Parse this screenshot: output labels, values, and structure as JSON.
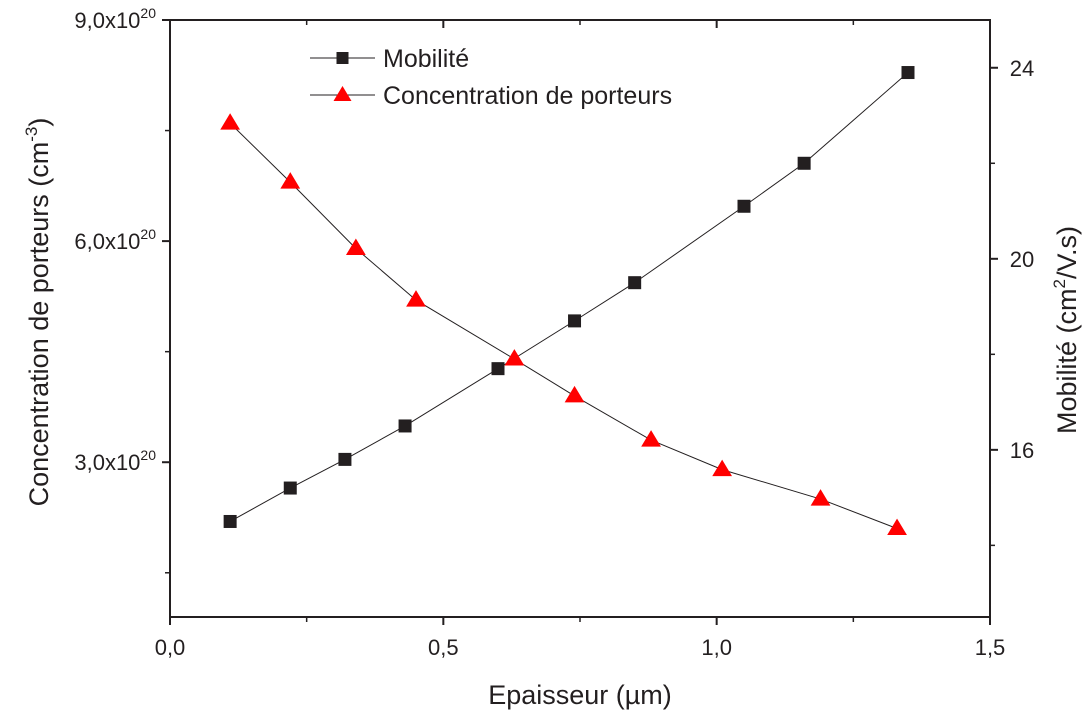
{
  "chart_data": {
    "type": "line",
    "xlabel": "Epaisseur (µm)",
    "ylabel_left": {
      "base": "Concentration de porteurs (cm",
      "sup": "-3",
      "tail": ")"
    },
    "ylabel_right": {
      "base": "Mobilité (cm",
      "sup": "2",
      "tail": "/V.s)"
    },
    "xlim": [
      0.0,
      1.5
    ],
    "ylim_left": [
      9e+19,
      9e+20
    ],
    "ylim_right": [
      12.5,
      25.0
    ],
    "x_ticks": [
      {
        "value": 0.0,
        "label": "0,0"
      },
      {
        "value": 0.5,
        "label": "0,5"
      },
      {
        "value": 1.0,
        "label": "1,0"
      },
      {
        "value": 1.5,
        "label": "1,5"
      }
    ],
    "y_left_ticks": [
      {
        "value": 3e+20,
        "mantissa": "3,0x10",
        "exp": "20"
      },
      {
        "value": 6e+20,
        "mantissa": "6,0x10",
        "exp": "20"
      },
      {
        "value": 9e+20,
        "mantissa": "9,0x10",
        "exp": "20"
      }
    ],
    "y_right_ticks": [
      {
        "value": 16,
        "label": "16"
      },
      {
        "value": 20,
        "label": "20"
      },
      {
        "value": 24,
        "label": "24"
      }
    ],
    "legend_position": "top-center",
    "series": [
      {
        "name": "Mobilité",
        "axis": "right",
        "marker": "square",
        "color": "#231f20",
        "x": [
          0.11,
          0.22,
          0.32,
          0.43,
          0.6,
          0.74,
          0.85,
          1.05,
          1.16,
          1.35
        ],
        "y": [
          14.5,
          15.2,
          15.8,
          16.5,
          17.7,
          18.7,
          19.5,
          21.1,
          22.0,
          23.9
        ]
      },
      {
        "name": "Concentration de porteurs",
        "axis": "left",
        "marker": "triangle",
        "color": "#ff0000",
        "x": [
          0.11,
          0.22,
          0.34,
          0.45,
          0.63,
          0.74,
          0.88,
          1.01,
          1.19,
          1.33
        ],
        "y": [
          7.6e+20,
          6.8e+20,
          5.9e+20,
          5.2e+20,
          4.4e+20,
          3.9e+20,
          3.3e+20,
          2.9e+20,
          2.5e+20,
          2.1e+20
        ]
      }
    ]
  }
}
